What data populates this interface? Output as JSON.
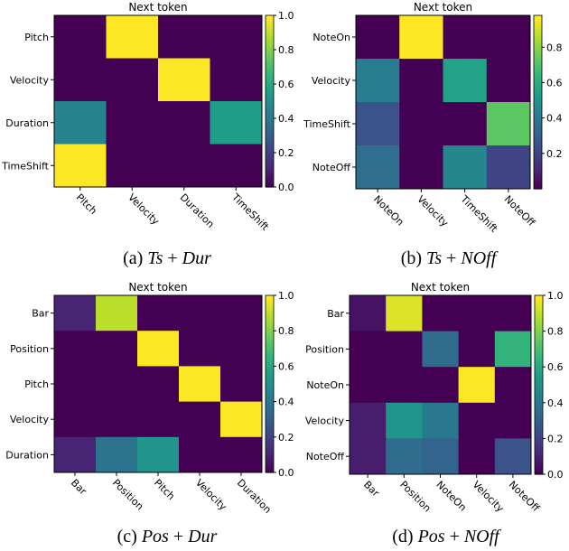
{
  "chart_data": [
    {
      "type": "heatmap",
      "title": "Next token",
      "caption": {
        "prefix": "(a)",
        "left": "Ts",
        "op": "+",
        "right": "Dur"
      },
      "rows": [
        "Pitch",
        "Velocity",
        "Duration",
        "TimeShift"
      ],
      "cols": [
        "Pitch",
        "Velocity",
        "Duration",
        "TimeShift"
      ],
      "values": [
        [
          0,
          1,
          0,
          0
        ],
        [
          0,
          0,
          1,
          0
        ],
        [
          0.45,
          0,
          0,
          0.55
        ],
        [
          1,
          0,
          0,
          0
        ]
      ],
      "colormap": "viridis",
      "clim": [
        0,
        1.0
      ],
      "colorbar_ticks": [
        "0.0",
        "0.2",
        "0.4",
        "0.6",
        "0.8",
        "1.0"
      ]
    },
    {
      "type": "heatmap",
      "title": "Next token",
      "caption": {
        "prefix": "(b)",
        "left": "Ts",
        "op": "+",
        "right": "NOff"
      },
      "rows": [
        "NoteOn",
        "Velocity",
        "TimeShift",
        "NoteOff"
      ],
      "cols": [
        "NoteOn",
        "Velocity",
        "TimeShift",
        "NoteOff"
      ],
      "values": [
        [
          0,
          0.98,
          0,
          0
        ],
        [
          0.42,
          0,
          0.56,
          0
        ],
        [
          0.25,
          0,
          0,
          0.73
        ],
        [
          0.35,
          0,
          0.45,
          0.2
        ]
      ],
      "colormap": "viridis",
      "clim": [
        0,
        0.98
      ],
      "colorbar_ticks": [
        "0.2",
        "0.4",
        "0.6",
        "0.8"
      ]
    },
    {
      "type": "heatmap",
      "title": "Next token",
      "caption": {
        "prefix": "(c)",
        "left": "Pos",
        "op": "+",
        "right": "Dur"
      },
      "rows": [
        "Bar",
        "Position",
        "Pitch",
        "Velocity",
        "Duration"
      ],
      "cols": [
        "Bar",
        "Position",
        "Pitch",
        "Velocity",
        "Duration"
      ],
      "values": [
        [
          0.1,
          0.9,
          0,
          0,
          0
        ],
        [
          0,
          0,
          1,
          0,
          0
        ],
        [
          0,
          0,
          0,
          1,
          0
        ],
        [
          0,
          0,
          0,
          0,
          1
        ],
        [
          0.1,
          0.38,
          0.52,
          0,
          0
        ]
      ],
      "colormap": "viridis",
      "clim": [
        0,
        1.0
      ],
      "colorbar_ticks": [
        "0.0",
        "0.2",
        "0.4",
        "0.6",
        "0.8",
        "1.0"
      ]
    },
    {
      "type": "heatmap",
      "title": "Next token",
      "caption": {
        "prefix": "(d)",
        "left": "Pos",
        "op": "+",
        "right": "NOff"
      },
      "rows": [
        "Bar",
        "Position",
        "NoteOn",
        "Velocity",
        "NoteOff"
      ],
      "cols": [
        "Bar",
        "Position",
        "NoteOn",
        "Velocity",
        "NoteOff"
      ],
      "values": [
        [
          0.05,
          0.95,
          0,
          0,
          0
        ],
        [
          0,
          0,
          0.35,
          0,
          0.65
        ],
        [
          0,
          0,
          0,
          1,
          0
        ],
        [
          0.08,
          0.52,
          0.4,
          0,
          0
        ],
        [
          0.08,
          0.35,
          0.32,
          0,
          0.25
        ]
      ],
      "colormap": "viridis",
      "clim": [
        0,
        1.0
      ],
      "colorbar_ticks": [
        "0.0",
        "0.2",
        "0.4",
        "0.6",
        "0.8",
        "1.0"
      ]
    }
  ]
}
